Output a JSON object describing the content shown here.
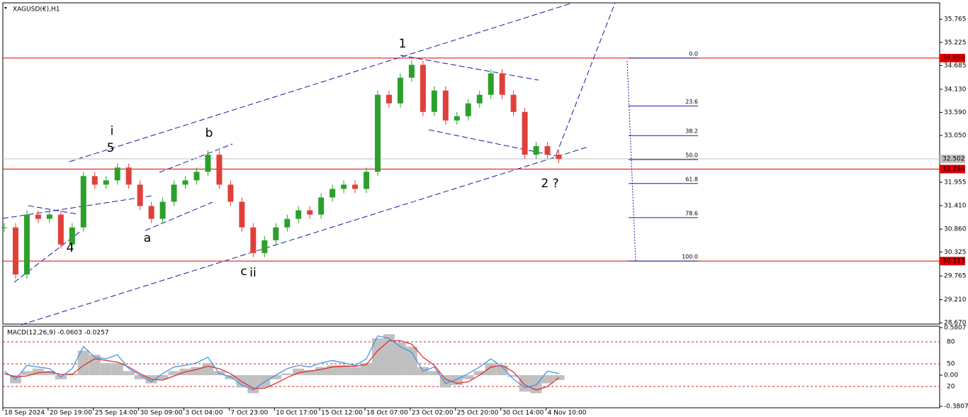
{
  "chart_data": {
    "type": "candle-line",
    "title": "XAGUSD(€),H1",
    "categories": [
      "18 Sep 2024",
      null,
      null,
      null,
      "20 Sep 19:00",
      null,
      null,
      null,
      "25 Sep 14:00",
      null,
      null,
      null,
      "30 Sep 09:00",
      null,
      null,
      null,
      "3 Oct 04:00",
      null,
      null,
      null,
      "7 Oct 23:00",
      null,
      null,
      null,
      "10 Oct 17:00",
      null,
      null,
      null,
      "15 Oct 12:00",
      null,
      null,
      null,
      "18 Oct 07:00",
      null,
      null,
      null,
      "23 Oct 02:00",
      null,
      null,
      null,
      "25 Oct 20:00",
      null,
      null,
      null,
      "30 Oct 14:00",
      null,
      null,
      null,
      "4 Nov 10:00",
      null
    ],
    "values": [
      30.9,
      29.8,
      31.2,
      31.1,
      31.2,
      30.5,
      30.9,
      32.1,
      31.9,
      32.0,
      32.3,
      31.9,
      31.4,
      31.1,
      31.5,
      31.9,
      32.0,
      32.2,
      32.6,
      31.9,
      31.5,
      30.9,
      30.3,
      30.6,
      30.9,
      31.1,
      31.3,
      31.2,
      31.6,
      31.8,
      31.9,
      31.8,
      32.2,
      34.0,
      33.8,
      34.4,
      34.7,
      33.6,
      34.1,
      33.4,
      33.5,
      33.8,
      34.0,
      34.5,
      34.0,
      33.6,
      32.6,
      32.8,
      32.6,
      32.5
    ],
    "up_color": "#2ca02c",
    "down_color": "#e0403a",
    "ylim": [
      28.64,
      36.15
    ],
    "yticks": [
      35.765,
      35.225,
      34.685,
      {
        "value": 34.13,
        "label": "34.130"
      },
      {
        "value": 33.59,
        "label": "33.590"
      },
      {
        "value": 33.05,
        "label": "33.050"
      },
      31.955,
      {
        "value": 31.41,
        "label": "31.410"
      },
      {
        "value": 30.86,
        "label": "30.860"
      },
      30.325,
      29.765,
      {
        "value": 29.21,
        "label": "29.210"
      },
      {
        "value": 28.67,
        "label": "28.670"
      }
    ],
    "levels": [
      {
        "value": 34.859,
        "label": "34.859",
        "color": "#e00000"
      },
      {
        "value": 32.264,
        "label": "32.264",
        "color": "#e00000"
      },
      {
        "value": 30.113,
        "label": "30.113",
        "color": "#e00000"
      },
      {
        "value": 32.502,
        "label": "32.502",
        "color": "#c0c0c0"
      }
    ],
    "fibonacci": {
      "high": 34.859,
      "low": 30.113,
      "color": "#1a1aa0",
      "levels": [
        {
          "value": 0,
          "label": "0.0"
        },
        23.6,
        38.2,
        {
          "value": 50,
          "label": "50.0"
        },
        61.8,
        78.6,
        {
          "value": 100,
          "label": "100.0"
        }
      ]
    },
    "annotations": [
      {
        "text": "1",
        "color": "#000"
      },
      {
        "text": "2 ?",
        "color": "#000"
      },
      {
        "text": "i",
        "color": "#e020e0"
      },
      {
        "text": "5",
        "color": "#000"
      },
      {
        "text": "b",
        "color": "#000"
      },
      {
        "text": "a",
        "color": "#000"
      },
      {
        "text": "4",
        "color": "#000"
      },
      {
        "text": "c",
        "color": "#000"
      },
      {
        "text": "ii",
        "color": "#e020e0"
      }
    ],
    "macd": {
      "title": "MACD(12,26,9) -0.0603 -0.0257",
      "ylim": [
        -0.3807,
        0.5807
      ],
      "yticks": [
        0.5807,
        {
          "value": 0,
          "label": "0.00"
        },
        -0.3807
      ],
      "guide_labels": [
        "80",
        "50",
        "20"
      ],
      "series": [
        {
          "name": "histogram",
          "color": "#c0c0c0",
          "values": [
            0,
            -0.1,
            0.05,
            0.08,
            0.05,
            -0.05,
            0.02,
            0.3,
            0.25,
            0.15,
            0.15,
            0.05,
            -0.05,
            -0.1,
            -0.05,
            0.05,
            0.08,
            0.1,
            0.15,
            0.05,
            -0.05,
            -0.15,
            -0.22,
            -0.15,
            -0.05,
            0.02,
            0.08,
            0.06,
            0.1,
            0.12,
            0.12,
            0.1,
            0.15,
            0.45,
            0.5,
            0.4,
            0.35,
            0.1,
            0.05,
            -0.15,
            -0.12,
            -0.05,
            0.05,
            0.15,
            0.12,
            -0.02,
            -0.2,
            -0.22,
            -0.1,
            -0.06
          ]
        },
        {
          "name": "signal",
          "color": "#e02020",
          "values": [
            0.02,
            -0.02,
            -0.01,
            0.03,
            0.04,
            0.01,
            0.01,
            0.12,
            0.2,
            0.18,
            0.16,
            0.1,
            0.02,
            -0.05,
            -0.06,
            -0.01,
            0.04,
            0.07,
            0.11,
            0.08,
            0.02,
            -0.08,
            -0.16,
            -0.16,
            -0.1,
            -0.03,
            0.03,
            0.05,
            0.07,
            0.1,
            0.11,
            0.11,
            0.13,
            0.3,
            0.42,
            0.42,
            0.38,
            0.22,
            0.12,
            -0.05,
            -0.1,
            -0.08,
            0,
            0.1,
            0.12,
            0.04,
            -0.12,
            -0.18,
            -0.14,
            -0.03
          ]
        },
        {
          "name": "main",
          "color": "#3a8ee6",
          "values": [
            0.05,
            -0.05,
            0.12,
            0.1,
            0.08,
            -0.02,
            0.08,
            0.35,
            0.22,
            0.2,
            0.25,
            0.08,
            0,
            -0.08,
            0.02,
            0.1,
            0.12,
            0.15,
            0.22,
            0.02,
            -0.02,
            -0.12,
            -0.18,
            -0.08,
            0,
            0.08,
            0.12,
            0.1,
            0.15,
            0.18,
            0.15,
            0.12,
            0.2,
            0.48,
            0.45,
            0.35,
            0.28,
            0.05,
            0.1,
            -0.1,
            -0.05,
            0.02,
            0.1,
            0.2,
            0.1,
            -0.05,
            -0.15,
            -0.12,
            0.05,
            0.02
          ]
        }
      ]
    }
  }
}
